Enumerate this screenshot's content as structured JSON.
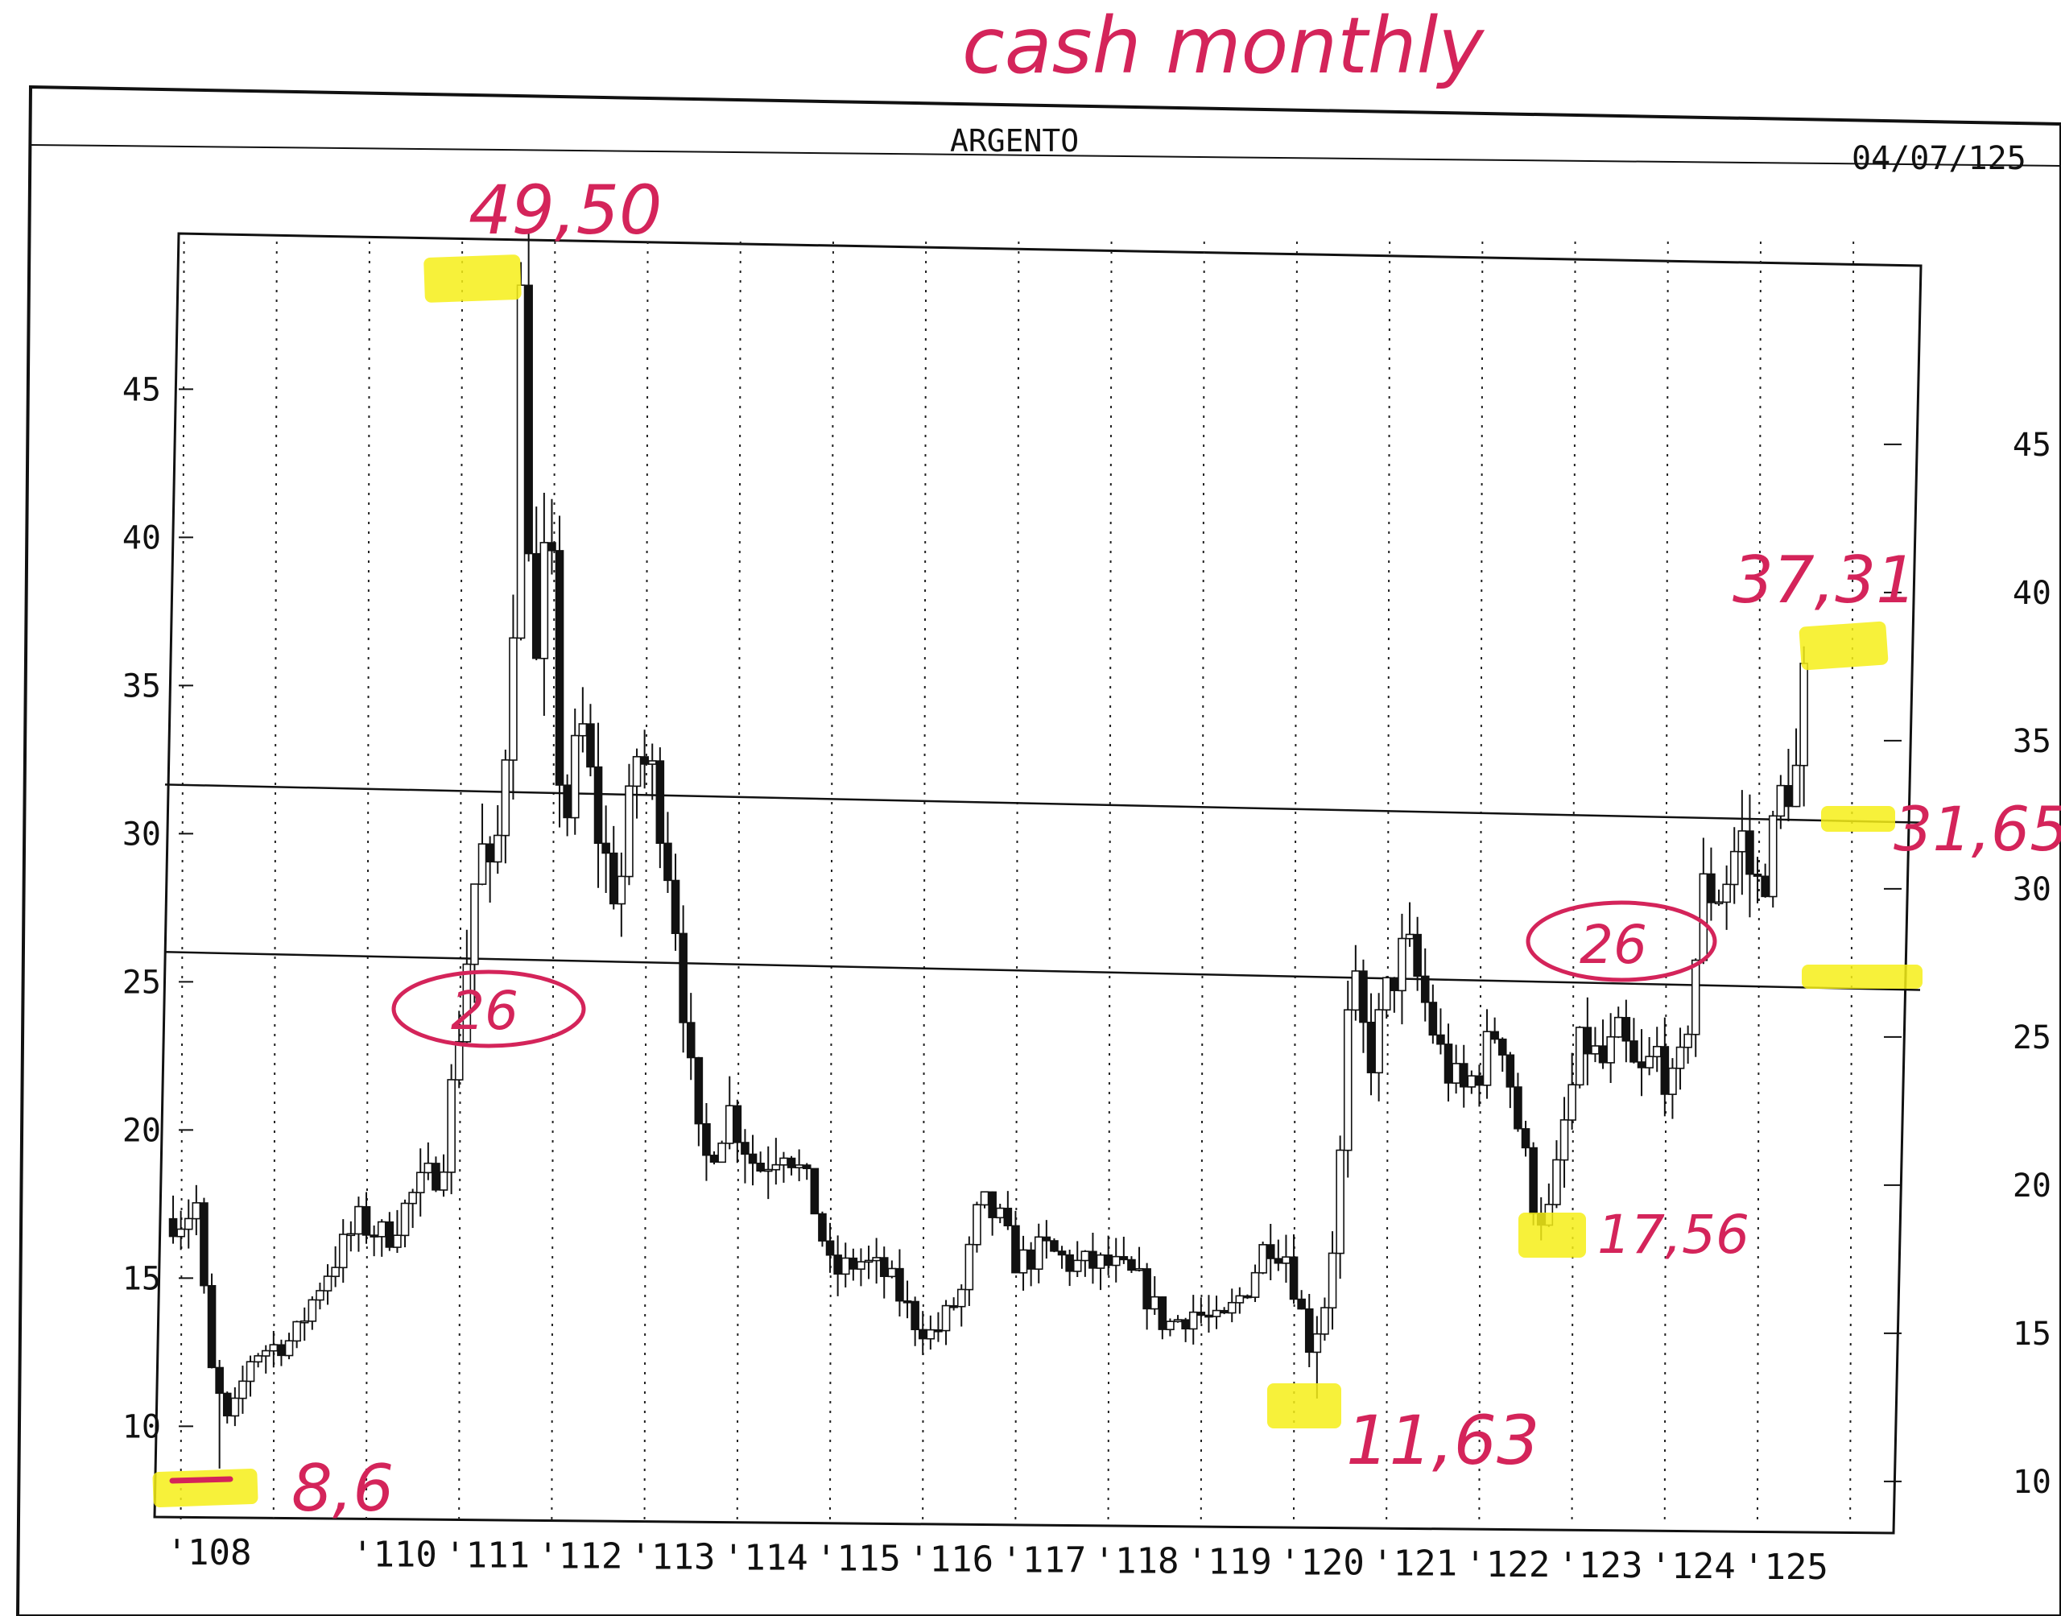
{
  "handwritten_title": "cash monthly",
  "header": {
    "title": "ARGENTO",
    "date": "04/07/125"
  },
  "colors": {
    "ink": "#111111",
    "annotation": "#d4245a",
    "highlight": "#f6ef18",
    "paper": "#ffffff"
  },
  "chart_data": {
    "type": "candlestick",
    "title": "ARGENTO",
    "xlabel": "",
    "ylabel": "",
    "x_tick_labels": [
      "'108",
      "'110",
      "'111",
      "'112",
      "'113",
      "'114",
      "'115",
      "'116",
      "'117",
      "'118",
      "'119",
      "'120",
      "'121",
      "'122",
      "'123",
      "'124",
      "'125"
    ],
    "y_ticks_left": [
      "10",
      "15",
      "20",
      "25",
      "30",
      "35",
      "40",
      "45"
    ],
    "y_ticks_right": [
      "10",
      "15",
      "20",
      "25",
      "30",
      "35",
      "40",
      "45"
    ],
    "ylim": [
      7.5,
      49.5
    ],
    "grid": "vertical dotted lines at each year",
    "horizontal_levels": [
      26,
      31.65
    ],
    "annotations": [
      {
        "text": "49,50",
        "value": 49.5,
        "kind": "high"
      },
      {
        "text": "8,6",
        "value": 8.6,
        "kind": "low"
      },
      {
        "text": "26",
        "value": 26,
        "kind": "circled-level"
      },
      {
        "text": "26",
        "value": 26,
        "kind": "circled-level"
      },
      {
        "text": "11,63",
        "value": 11.63,
        "kind": "low"
      },
      {
        "text": "17,56",
        "value": 17.56,
        "kind": "low"
      },
      {
        "text": "37,31",
        "value": 37.31,
        "kind": "high"
      },
      {
        "text": "31,65",
        "value": 31.65,
        "kind": "level"
      }
    ],
    "price_path_anchors": [
      {
        "t": 108.0,
        "v": 17.0
      },
      {
        "t": 108.15,
        "v": 17.5
      },
      {
        "t": 108.3,
        "v": 12.0
      },
      {
        "t": 108.5,
        "v": 10.0
      },
      {
        "t": 108.75,
        "v": 12.5
      },
      {
        "t": 109.2,
        "v": 13.0
      },
      {
        "t": 109.5,
        "v": 15.0
      },
      {
        "t": 109.9,
        "v": 17.0
      },
      {
        "t": 110.2,
        "v": 16.5
      },
      {
        "t": 110.5,
        "v": 18.0
      },
      {
        "t": 110.8,
        "v": 19.0
      },
      {
        "t": 111.0,
        "v": 24.0
      },
      {
        "t": 111.2,
        "v": 30.0
      },
      {
        "t": 111.35,
        "v": 28.0
      },
      {
        "t": 111.55,
        "v": 36.0
      },
      {
        "t": 111.65,
        "v": 48.0
      },
      {
        "t": 111.8,
        "v": 35.0
      },
      {
        "t": 111.95,
        "v": 41.0
      },
      {
        "t": 112.1,
        "v": 30.0
      },
      {
        "t": 112.3,
        "v": 34.0
      },
      {
        "t": 112.5,
        "v": 30.0
      },
      {
        "t": 112.7,
        "v": 28.0
      },
      {
        "t": 112.9,
        "v": 33.0
      },
      {
        "t": 113.1,
        "v": 32.0
      },
      {
        "t": 113.3,
        "v": 28.0
      },
      {
        "t": 113.45,
        "v": 23.0
      },
      {
        "t": 113.6,
        "v": 19.0
      },
      {
        "t": 113.9,
        "v": 21.0
      },
      {
        "t": 114.2,
        "v": 19.0
      },
      {
        "t": 114.5,
        "v": 20.0
      },
      {
        "t": 114.8,
        "v": 18.0
      },
      {
        "t": 115.0,
        "v": 15.5
      },
      {
        "t": 115.3,
        "v": 16.0
      },
      {
        "t": 115.6,
        "v": 15.5
      },
      {
        "t": 115.9,
        "v": 14.0
      },
      {
        "t": 116.1,
        "v": 13.5
      },
      {
        "t": 116.4,
        "v": 15.0
      },
      {
        "t": 116.6,
        "v": 18.0
      },
      {
        "t": 116.8,
        "v": 17.5
      },
      {
        "t": 117.0,
        "v": 16.0
      },
      {
        "t": 117.3,
        "v": 16.5
      },
      {
        "t": 117.6,
        "v": 16.0
      },
      {
        "t": 118.0,
        "v": 16.0
      },
      {
        "t": 118.3,
        "v": 15.5
      },
      {
        "t": 118.6,
        "v": 14.0
      },
      {
        "t": 118.9,
        "v": 14.5
      },
      {
        "t": 119.2,
        "v": 14.0
      },
      {
        "t": 119.5,
        "v": 15.5
      },
      {
        "t": 119.7,
        "v": 17.0
      },
      {
        "t": 119.9,
        "v": 16.5
      },
      {
        "t": 120.15,
        "v": 13.5
      },
      {
        "t": 120.3,
        "v": 14.5
      },
      {
        "t": 120.45,
        "v": 18.0
      },
      {
        "t": 120.6,
        "v": 26.0
      },
      {
        "t": 120.8,
        "v": 23.0
      },
      {
        "t": 121.0,
        "v": 25.5
      },
      {
        "t": 121.2,
        "v": 27.0
      },
      {
        "t": 121.4,
        "v": 25.0
      },
      {
        "t": 121.6,
        "v": 23.0
      },
      {
        "t": 121.8,
        "v": 22.0
      },
      {
        "t": 122.0,
        "v": 23.0
      },
      {
        "t": 122.2,
        "v": 24.5
      },
      {
        "t": 122.4,
        "v": 21.0
      },
      {
        "t": 122.6,
        "v": 18.0
      },
      {
        "t": 122.75,
        "v": 18.0
      },
      {
        "t": 122.9,
        "v": 21.0
      },
      {
        "t": 123.1,
        "v": 24.0
      },
      {
        "t": 123.3,
        "v": 23.0
      },
      {
        "t": 123.5,
        "v": 24.0
      },
      {
        "t": 123.7,
        "v": 22.5
      },
      {
        "t": 123.9,
        "v": 23.5
      },
      {
        "t": 124.1,
        "v": 22.0
      },
      {
        "t": 124.25,
        "v": 25.0
      },
      {
        "t": 124.4,
        "v": 29.0
      },
      {
        "t": 124.6,
        "v": 29.0
      },
      {
        "t": 124.8,
        "v": 31.0
      },
      {
        "t": 124.95,
        "v": 29.0
      },
      {
        "t": 125.1,
        "v": 30.0
      },
      {
        "t": 125.25,
        "v": 32.5
      },
      {
        "t": 125.4,
        "v": 33.0
      },
      {
        "t": 125.5,
        "v": 36.5
      }
    ]
  }
}
